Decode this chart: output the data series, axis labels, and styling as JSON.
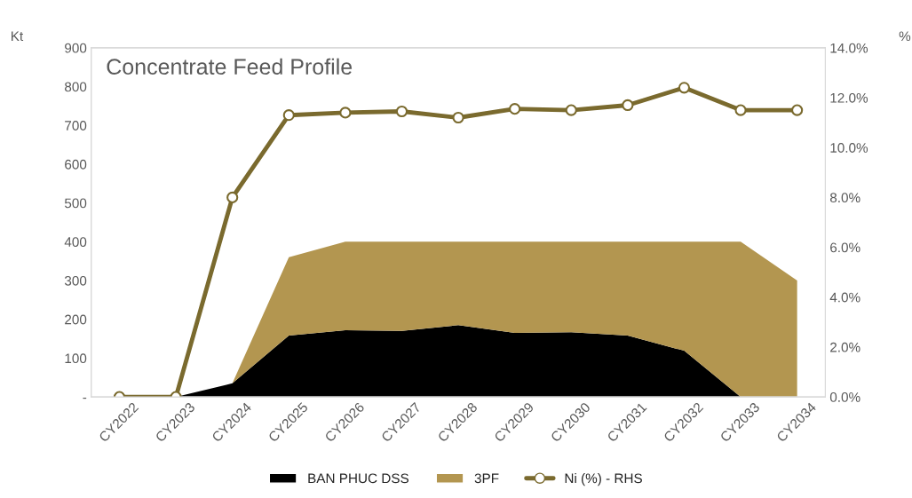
{
  "chart_data": {
    "type": "area",
    "title": "Concentrate Feed Profile",
    "ylabel": "Kt",
    "y2label": "%",
    "categories": [
      "CY2022",
      "CY2023",
      "CY2024",
      "CY2025",
      "CY2026",
      "CY2027",
      "CY2028",
      "CY2029",
      "CY2030",
      "CY2031",
      "CY2032",
      "CY2033",
      "CY2034"
    ],
    "stacked": true,
    "series": [
      {
        "name": "BAN PHUC DSS",
        "color": "#000000",
        "values": [
          0,
          0,
          35,
          158,
          172,
          170,
          185,
          165,
          167,
          158,
          119,
          0,
          0
        ]
      },
      {
        "name": "3PF",
        "color": "#b39650",
        "values": [
          0,
          0,
          0,
          202,
          228,
          230,
          215,
          235,
          233,
          242,
          281,
          400,
          300
        ]
      },
      {
        "name": "Ni (%) - RHS",
        "type": "line",
        "axis": "y2",
        "color": "#7a6a2e",
        "marker": "circle",
        "values": [
          0,
          0,
          8.0,
          11.3,
          11.4,
          11.45,
          11.2,
          11.55,
          11.5,
          11.7,
          12.4,
          11.5,
          11.5
        ]
      }
    ],
    "ylim": [
      0,
      900
    ],
    "yticks": [
      {
        "value": 0,
        "label": "-"
      },
      100,
      200,
      300,
      400,
      500,
      600,
      700,
      800,
      900
    ],
    "y2lim": [
      0,
      14
    ],
    "y2ticks": [
      {
        "value": 0,
        "label": "0.0%"
      },
      {
        "value": 2,
        "label": "2.0%"
      },
      {
        "value": 4,
        "label": "4.0%"
      },
      {
        "value": 6,
        "label": "6.0%"
      },
      {
        "value": 8,
        "label": "8.0%"
      },
      {
        "value": 10,
        "label": "10.0%"
      },
      {
        "value": 12,
        "label": "12.0%"
      },
      {
        "value": 14,
        "label": "14.0%"
      }
    ],
    "legend": "bottom"
  }
}
